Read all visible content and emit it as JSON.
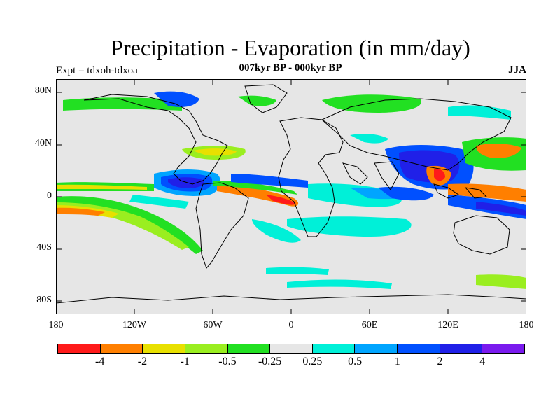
{
  "title": "Precipitation - Evaporation (in mm/day)",
  "subtitle": "007kyr BP - 000kyr BP",
  "expt": "Expt = tdxoh-tdxoa",
  "season": "JJA",
  "lat_labels": [
    "80N",
    "40N",
    "0",
    "40S",
    "80S"
  ],
  "lon_labels": [
    "180",
    "120W",
    "60W",
    "0",
    "60E",
    "120E",
    "180"
  ],
  "colorbar": {
    "colors": [
      "#ff1a1a",
      "#ff7f00",
      "#e8e000",
      "#9aee20",
      "#22e022",
      "#e6e6e6",
      "#00f0d8",
      "#00a5ff",
      "#0050ff",
      "#2020e8",
      "#7a1aee"
    ],
    "labels": [
      "-4",
      "-2",
      "-1",
      "-0.5",
      "-0.25",
      "0.25",
      "0.5",
      "1",
      "2",
      "4"
    ]
  }
}
